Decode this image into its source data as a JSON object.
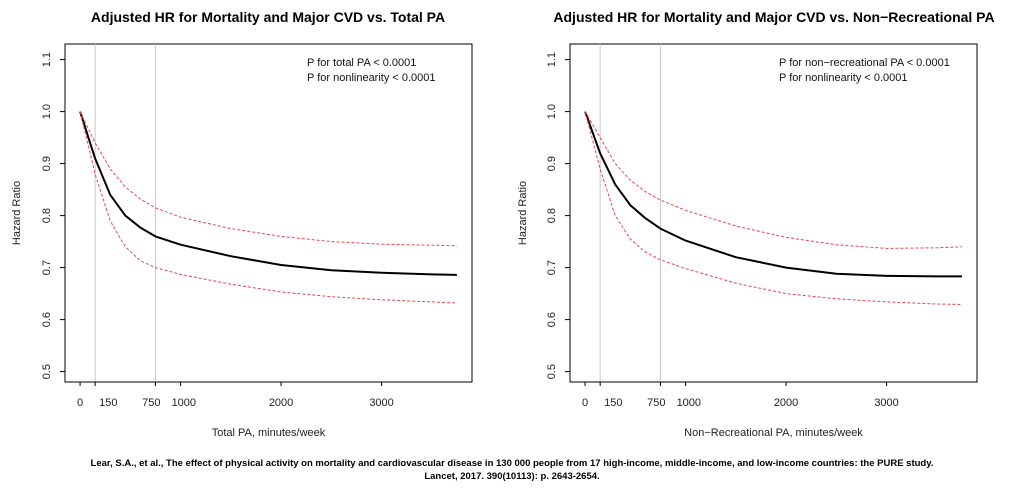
{
  "chart_data": [
    {
      "type": "line",
      "title": "Adjusted HR for Mortality and Major CVD vs. Total PA",
      "xlabel": "Total PA, minutes/week",
      "ylabel": "Hazard Ratio",
      "xticks": [
        0,
        150,
        750,
        1000,
        2000,
        3000
      ],
      "xtick_labels": [
        "0",
        "150",
        "750",
        "1000",
        "2000",
        "3000"
      ],
      "yticks": [
        0.5,
        0.6,
        0.7,
        0.8,
        0.9,
        1.0,
        1.1
      ],
      "ytick_labels": [
        "0.5",
        "0.6",
        "0.7",
        "0.8",
        "0.9",
        "1.0",
        "1.1"
      ],
      "xlim": [
        -150,
        3900
      ],
      "ylim": [
        0.48,
        1.13
      ],
      "reference_lines_x": [
        150,
        750
      ],
      "grid": false,
      "annotations": [
        "P for total PA < 0.0001",
        "P for nonlinearity < 0.0001"
      ],
      "series": [
        {
          "style": "solid",
          "color": "#000000",
          "x": [
            0,
            150,
            300,
            450,
            600,
            750,
            1000,
            1500,
            2000,
            2500,
            3000,
            3500,
            3750
          ],
          "y": [
            1.0,
            0.91,
            0.84,
            0.8,
            0.777,
            0.76,
            0.744,
            0.722,
            0.705,
            0.695,
            0.69,
            0.687,
            0.686
          ]
        },
        {
          "style": "dashed",
          "color": "#e8464a",
          "x": [
            0,
            150,
            300,
            450,
            600,
            750,
            1000,
            1500,
            2000,
            2500,
            3000,
            3500,
            3750
          ],
          "y": [
            1.0,
            0.94,
            0.89,
            0.855,
            0.832,
            0.815,
            0.797,
            0.775,
            0.76,
            0.75,
            0.745,
            0.743,
            0.742
          ]
        },
        {
          "style": "dashed",
          "color": "#e8464a",
          "x": [
            0,
            150,
            300,
            450,
            600,
            750,
            1000,
            1500,
            2000,
            2500,
            3000,
            3500,
            3750
          ],
          "y": [
            1.0,
            0.88,
            0.79,
            0.74,
            0.713,
            0.7,
            0.687,
            0.668,
            0.653,
            0.644,
            0.638,
            0.634,
            0.632
          ]
        }
      ]
    },
    {
      "type": "line",
      "title": "Adjusted HR for Mortality and Major CVD vs. Non−Recreational PA",
      "xlabel": "Non−Recreational PA, minutes/week",
      "ylabel": "Hazard Ratio",
      "xticks": [
        0,
        150,
        750,
        1000,
        2000,
        3000
      ],
      "xtick_labels": [
        "0",
        "150",
        "750",
        "1000",
        "2000",
        "3000"
      ],
      "yticks": [
        0.5,
        0.6,
        0.7,
        0.8,
        0.9,
        1.0,
        1.1
      ],
      "ytick_labels": [
        "0.5",
        "0.6",
        "0.7",
        "0.8",
        "0.9",
        "1.0",
        "1.1"
      ],
      "xlim": [
        -150,
        3900
      ],
      "ylim": [
        0.48,
        1.13
      ],
      "reference_lines_x": [
        150,
        750
      ],
      "grid": false,
      "annotations": [
        "P for non−recreational PA < 0.0001",
        "P for nonlinearity < 0.0001"
      ],
      "series": [
        {
          "style": "solid",
          "color": "#000000",
          "x": [
            0,
            150,
            300,
            450,
            600,
            750,
            1000,
            1500,
            2000,
            2500,
            3000,
            3500,
            3750
          ],
          "y": [
            1.0,
            0.92,
            0.86,
            0.82,
            0.795,
            0.775,
            0.752,
            0.72,
            0.7,
            0.688,
            0.684,
            0.683,
            0.683
          ]
        },
        {
          "style": "dashed",
          "color": "#e8464a",
          "x": [
            0,
            150,
            300,
            450,
            600,
            750,
            1000,
            1500,
            2000,
            2500,
            3000,
            3500,
            3750
          ],
          "y": [
            1.0,
            0.95,
            0.9,
            0.868,
            0.846,
            0.83,
            0.81,
            0.78,
            0.758,
            0.744,
            0.737,
            0.738,
            0.74
          ]
        },
        {
          "style": "dashed",
          "color": "#e8464a",
          "x": [
            0,
            150,
            300,
            450,
            600,
            750,
            1000,
            1500,
            2000,
            2500,
            3000,
            3500,
            3750
          ],
          "y": [
            1.0,
            0.89,
            0.8,
            0.755,
            0.73,
            0.715,
            0.698,
            0.67,
            0.65,
            0.64,
            0.634,
            0.63,
            0.629
          ]
        }
      ]
    }
  ],
  "citation": {
    "line1": "Lear, S.A., et al., The effect of physical activity on mortality and cardiovascular disease in 130 000 people from 17 high-income, middle-income, and low-income countries: the PURE study.",
    "line2": "Lancet, 2017. 390(10113): p. 2643-2654."
  }
}
